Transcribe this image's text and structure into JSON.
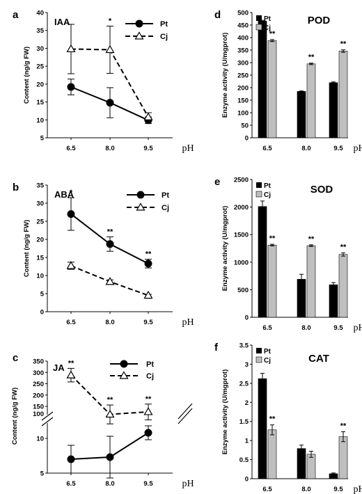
{
  "chart_data": [
    {
      "panel": "a",
      "title": "IAA",
      "type": "line",
      "ylabel": "Content (ng/g FW)",
      "xlabel": "pH",
      "categories": [
        "6.5",
        "8.0",
        "9.5"
      ],
      "ylim": [
        5,
        40
      ],
      "yticks": [
        5,
        10,
        15,
        20,
        25,
        30,
        35,
        40
      ],
      "series": [
        {
          "name": "Pt",
          "values": [
            19.2,
            14.8,
            9.9
          ],
          "errors": [
            2.2,
            4.2,
            0.9
          ]
        },
        {
          "name": "Cj",
          "values": [
            29.8,
            29.6,
            10.8
          ],
          "errors": [
            6.9,
            6.6,
            1.2
          ]
        }
      ],
      "annotations": [
        "",
        "*",
        ""
      ]
    },
    {
      "panel": "b",
      "title": "ABA",
      "type": "line",
      "ylabel": "Content (ng/g FW)",
      "xlabel": "pH",
      "categories": [
        "6.5",
        "8.0",
        "9.5"
      ],
      "ylim": [
        0,
        35
      ],
      "yticks": [
        0,
        5,
        10,
        15,
        20,
        25,
        30,
        35
      ],
      "series": [
        {
          "name": "Pt",
          "values": [
            27.0,
            18.7,
            13.3
          ],
          "errors": [
            4.5,
            2.0,
            1.2
          ]
        },
        {
          "name": "Cj",
          "values": [
            12.7,
            8.3,
            4.5
          ],
          "errors": [
            1.0,
            0.5,
            0.3
          ]
        }
      ],
      "annotations": [
        "*",
        "**",
        "**"
      ]
    },
    {
      "panel": "c",
      "title": "JA",
      "type": "line",
      "ylabel": "Content (ng/g FW)",
      "xlabel": "pH",
      "categories": [
        "6.5",
        "8.0",
        "9.5"
      ],
      "axis_break": true,
      "upper_ylim": [
        150,
        350
      ],
      "upper_yticks": [
        150,
        200,
        250,
        300,
        350
      ],
      "upper_tick_labels": [
        "150",
        "200",
        "250",
        "300",
        "350"
      ],
      "lower_ylim": [
        5,
        12
      ],
      "lower_yticks": [
        5,
        10
      ],
      "mid_tick_label": "100",
      "series": [
        {
          "name": "Pt",
          "values": [
            7.0,
            7.3,
            10.8
          ],
          "errors": [
            2.0,
            3.0,
            1.0
          ]
        },
        {
          "name": "Cj",
          "values": [
            288,
            118,
            128
          ],
          "errors": [
            30,
            38,
            32
          ]
        }
      ],
      "annotations": [
        "**",
        "**",
        "**"
      ]
    },
    {
      "panel": "d",
      "title": "POD",
      "type": "bar",
      "ylabel": "Enzyme activity (U/mgprot)",
      "xlabel": "pH",
      "categories": [
        "6.5",
        "8.0",
        "9.5"
      ],
      "ylim": [
        0,
        500
      ],
      "yticks": [
        0,
        50,
        100,
        150,
        200,
        250,
        300,
        350,
        400,
        450,
        500
      ],
      "series": [
        {
          "name": "Pt",
          "values": [
            466,
            185,
            220
          ],
          "errors": [
            3,
            2,
            3
          ]
        },
        {
          "name": "Cj",
          "values": [
            388,
            295,
            346
          ],
          "errors": [
            4,
            3,
            5
          ]
        }
      ],
      "annotations": [
        "**",
        "**",
        "**"
      ]
    },
    {
      "panel": "e",
      "title": "SOD",
      "type": "bar",
      "ylabel": "Enzyme activity (U/mgprot)",
      "xlabel": "pH",
      "categories": [
        "6.5",
        "8.0",
        "9.5"
      ],
      "ylim": [
        0,
        2500
      ],
      "yticks": [
        0,
        500,
        1000,
        1500,
        2000,
        2500
      ],
      "series": [
        {
          "name": "Pt",
          "values": [
            2010,
            690,
            590
          ],
          "errors": [
            100,
            90,
            40
          ]
        },
        {
          "name": "Cj",
          "values": [
            1310,
            1300,
            1140
          ],
          "errors": [
            15,
            15,
            30
          ]
        }
      ],
      "annotations": [
        "**",
        "**",
        "**"
      ]
    },
    {
      "panel": "f",
      "title": "CAT",
      "type": "bar",
      "ylabel": "Enzyme activity (U/mgprot)",
      "xlabel": "pH",
      "categories": [
        "6.5",
        "8.0",
        "9.5"
      ],
      "ylim": [
        0,
        3.5
      ],
      "yticks": [
        0,
        0.5,
        1,
        1.5,
        2,
        2.5,
        3,
        3.5
      ],
      "series": [
        {
          "name": "Pt",
          "values": [
            2.62,
            0.79,
            0.13
          ],
          "errors": [
            0.14,
            0.09,
            0.02
          ]
        },
        {
          "name": "Cj",
          "values": [
            1.28,
            0.64,
            1.1
          ],
          "errors": [
            0.13,
            0.08,
            0.13
          ]
        }
      ],
      "annotations": [
        "**",
        "",
        "**"
      ]
    }
  ],
  "colors": {
    "pt_bar": "#000000",
    "cj_bar": "#bfbfbf",
    "axis": "#000000"
  }
}
